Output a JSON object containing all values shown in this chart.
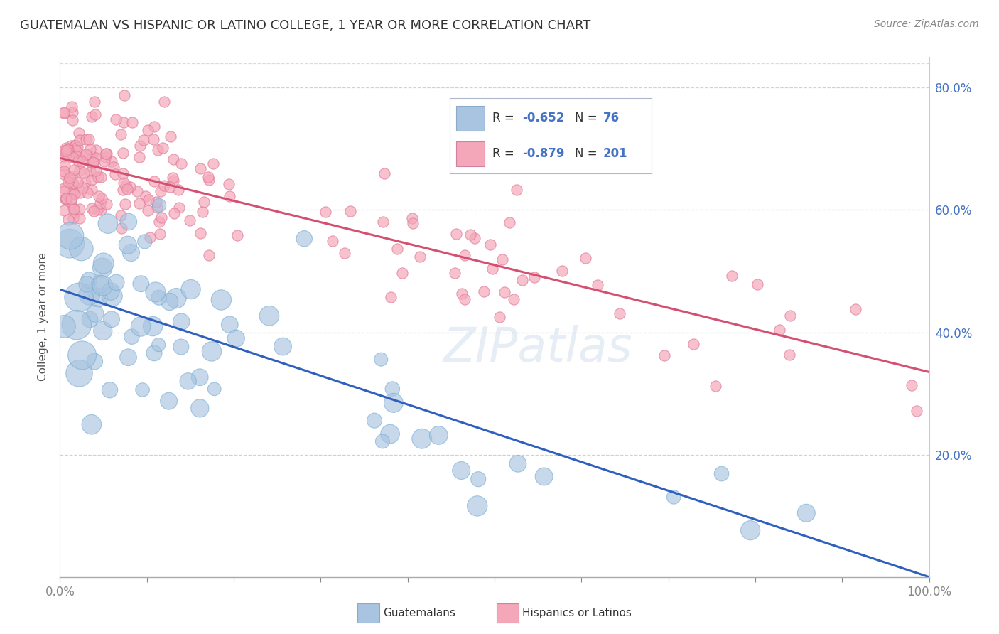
{
  "title": "GUATEMALAN VS HISPANIC OR LATINO COLLEGE, 1 YEAR OR MORE CORRELATION CHART",
  "source_text": "Source: ZipAtlas.com",
  "ylabel": "College, 1 year or more",
  "xlim": [
    0.0,
    1.0
  ],
  "ylim": [
    0.0,
    0.85
  ],
  "x_tick_positions": [
    0.0,
    0.1,
    0.2,
    0.3,
    0.4,
    0.5,
    0.6,
    0.7,
    0.8,
    0.9,
    1.0
  ],
  "x_tick_labels": [
    "0.0%",
    "",
    "",
    "",
    "",
    "",
    "",
    "",
    "",
    "",
    "100.0%"
  ],
  "y_ticks_right": [
    0.2,
    0.4,
    0.6,
    0.8
  ],
  "y_tick_labels_right": [
    "20.0%",
    "40.0%",
    "60.0%",
    "80.0%"
  ],
  "guatemalan_color": "#a8c4e0",
  "guatemalan_edge_color": "#7aafd4",
  "hispanic_color": "#f4a7b9",
  "hispanic_edge_color": "#e07898",
  "guatemalan_line_color": "#2f5fbf",
  "hispanic_line_color": "#d45070",
  "R_guatemalan": -0.652,
  "N_guatemalan": 76,
  "R_hispanic": -0.879,
  "N_hispanic": 201,
  "watermark": "ZIPatlas",
  "background_color": "#ffffff",
  "grid_color": "#cccccc",
  "title_color": "#333333",
  "axis_color": "#4472c4",
  "legend_label_guatemalan": "Guatemalans",
  "legend_label_hispanic": "Hispanics or Latinos",
  "guatemalan_line_x0": 0.0,
  "guatemalan_line_y0": 0.47,
  "guatemalan_line_x1": 1.0,
  "guatemalan_line_y1": 0.0,
  "hispanic_line_x0": 0.0,
  "hispanic_line_y0": 0.685,
  "hispanic_line_x1": 1.0,
  "hispanic_line_y1": 0.335
}
